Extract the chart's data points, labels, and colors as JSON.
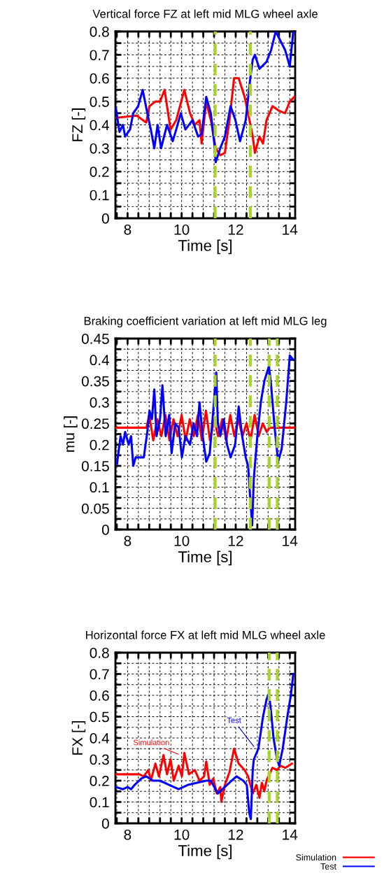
{
  "chart_data": [
    {
      "type": "line",
      "title": "Vertical force FZ at left mid MLG wheel axle",
      "xlabel": "Time [s]",
      "ylabel": "FZ [-]",
      "xlim": [
        7.55,
        14.2
      ],
      "xticks": [
        {
          "value": 7.6,
          "label": null
        },
        8,
        {
          "value": 8.4,
          "label": null
        },
        {
          "value": 8.8,
          "label": null
        },
        {
          "value": 9.2,
          "label": null
        },
        {
          "value": 9.6,
          "label": null
        },
        10,
        {
          "value": 10.4,
          "label": null
        },
        {
          "value": 10.8,
          "label": null
        },
        {
          "value": 11.2,
          "label": null
        },
        {
          "value": 11.6,
          "label": null
        },
        12,
        {
          "value": 12.4,
          "label": null
        },
        {
          "value": 12.8,
          "label": null
        },
        {
          "value": 13.2,
          "label": null
        },
        {
          "value": 13.6,
          "label": null
        },
        14
      ],
      "ylim": [
        0,
        0.8
      ],
      "yticks": [
        0,
        {
          "value": 0.05,
          "label": null
        },
        0.1,
        {
          "value": 0.15,
          "label": null
        },
        0.2,
        {
          "value": 0.25,
          "label": null
        },
        0.3,
        {
          "value": 0.35,
          "label": null
        },
        0.4,
        {
          "value": 0.45,
          "label": null
        },
        0.5,
        {
          "value": 0.55,
          "label": null
        },
        0.6,
        {
          "value": 0.65,
          "label": null
        },
        0.7,
        {
          "value": 0.75,
          "label": null
        },
        0.8
      ],
      "grid": true,
      "series": [
        {
          "color": "#ff0000",
          "x": [
            7.57,
            8.34,
            8.69,
            8.81,
            9.03,
            9.2,
            9.37,
            9.59,
            9.8,
            10.1,
            10.31,
            10.49,
            10.66,
            10.74,
            10.91,
            11.08,
            11.26,
            11.43,
            11.6,
            11.77,
            11.94,
            12.11,
            12.33,
            12.46,
            12.63,
            12.71,
            12.88,
            13.01,
            13.14,
            13.36,
            13.61,
            13.83,
            14.0,
            14.17
          ],
          "values": [
            0.43,
            0.44,
            0.41,
            0.48,
            0.5,
            0.5,
            0.55,
            0.38,
            0.42,
            0.55,
            0.45,
            0.4,
            0.42,
            0.32,
            0.5,
            0.42,
            0.3,
            0.27,
            0.28,
            0.42,
            0.6,
            0.6,
            0.52,
            0.45,
            0.35,
            0.28,
            0.35,
            0.32,
            0.42,
            0.48,
            0.46,
            0.45,
            0.5,
            0.52
          ]
        },
        {
          "color": "#0000ff",
          "x": [
            7.57,
            7.7,
            7.83,
            7.91,
            8.09,
            8.21,
            8.39,
            8.56,
            8.73,
            8.86,
            8.99,
            9.11,
            9.24,
            9.46,
            9.67,
            9.8,
            9.97,
            10.14,
            10.4,
            10.61,
            10.74,
            10.91,
            11.08,
            11.21,
            11.26,
            11.43,
            11.6,
            11.81,
            11.99,
            12.16,
            12.37,
            12.54,
            12.63,
            12.71,
            12.88,
            13.14,
            13.31,
            13.48,
            13.7,
            13.83,
            14.0,
            14.13
          ],
          "values": [
            0.47,
            0.37,
            0.4,
            0.35,
            0.38,
            0.45,
            0.48,
            0.55,
            0.45,
            0.38,
            0.3,
            0.4,
            0.3,
            0.4,
            0.33,
            0.38,
            0.45,
            0.38,
            0.42,
            0.35,
            0.36,
            0.52,
            0.45,
            0.32,
            0.24,
            0.3,
            0.35,
            0.48,
            0.42,
            0.33,
            0.42,
            0.6,
            0.68,
            0.7,
            0.64,
            0.67,
            0.72,
            0.8,
            0.75,
            0.72,
            0.65,
            0.8
          ]
        }
      ],
      "ref_lines": [
        {
          "axis": "x",
          "value": 11.24,
          "color": "#a8d42a",
          "line_style": "dashed"
        },
        {
          "axis": "x",
          "value": 12.54,
          "color": "#a8d42a",
          "line_style": "dashed"
        }
      ]
    },
    {
      "type": "line",
      "title": "Braking coefficient variation at left mid MLG leg",
      "xlabel": "Time [s]",
      "ylabel": "mu [-]",
      "xlim": [
        7.55,
        14.2
      ],
      "xticks": [
        {
          "value": 7.6,
          "label": null
        },
        8,
        {
          "value": 8.4,
          "label": null
        },
        {
          "value": 8.8,
          "label": null
        },
        {
          "value": 9.2,
          "label": null
        },
        {
          "value": 9.6,
          "label": null
        },
        10,
        {
          "value": 10.4,
          "label": null
        },
        {
          "value": 10.8,
          "label": null
        },
        {
          "value": 11.2,
          "label": null
        },
        {
          "value": 11.6,
          "label": null
        },
        12,
        {
          "value": 12.4,
          "label": null
        },
        {
          "value": 12.8,
          "label": null
        },
        {
          "value": 13.2,
          "label": null
        },
        {
          "value": 13.6,
          "label": null
        },
        14
      ],
      "ylim": [
        0,
        0.45
      ],
      "yticks": [
        0,
        {
          "value": 0.025,
          "label": null
        },
        0.05,
        {
          "value": 0.075,
          "label": null
        },
        0.1,
        {
          "value": 0.125,
          "label": null
        },
        0.15,
        {
          "value": 0.175,
          "label": null
        },
        0.2,
        {
          "value": 0.225,
          "label": null
        },
        0.25,
        {
          "value": 0.275,
          "label": null
        },
        0.3,
        {
          "value": 0.325,
          "label": null
        },
        0.35,
        {
          "value": 0.375,
          "label": null
        },
        0.4,
        {
          "value": 0.425,
          "label": null
        },
        0.45
      ],
      "grid": true,
      "series": [
        {
          "color": "#ff0000",
          "x": [
            7.57,
            8.7,
            8.8,
            8.95,
            9.1,
            9.25,
            9.4,
            9.55,
            9.7,
            9.85,
            10.0,
            10.15,
            10.3,
            10.45,
            10.6,
            10.75,
            10.9,
            11.05,
            11.2,
            11.35,
            11.5,
            11.65,
            11.8,
            11.95,
            12.1,
            12.25,
            12.4,
            12.55,
            12.7,
            12.85,
            13.0,
            13.15,
            13.25,
            14.17
          ],
          "values": [
            0.24,
            0.24,
            0.27,
            0.21,
            0.26,
            0.22,
            0.27,
            0.21,
            0.26,
            0.22,
            0.27,
            0.21,
            0.26,
            0.22,
            0.27,
            0.21,
            0.28,
            0.21,
            0.26,
            0.22,
            0.26,
            0.21,
            0.27,
            0.22,
            0.26,
            0.22,
            0.25,
            0.21,
            0.27,
            0.22,
            0.25,
            0.23,
            0.24,
            0.24
          ]
        },
        {
          "color": "#0000ff",
          "x": [
            7.61,
            7.74,
            7.83,
            7.91,
            8.04,
            8.13,
            8.21,
            8.3,
            8.43,
            8.6,
            8.73,
            8.81,
            8.9,
            8.99,
            9.07,
            9.2,
            9.29,
            9.41,
            9.54,
            9.63,
            9.76,
            9.89,
            10.01,
            10.14,
            10.31,
            10.44,
            10.57,
            10.66,
            10.78,
            10.91,
            11.04,
            11.17,
            11.28,
            11.34,
            11.43,
            11.56,
            11.68,
            11.81,
            11.98,
            12.11,
            12.24,
            12.37,
            12.46,
            12.54,
            12.61,
            12.67,
            12.8,
            12.93,
            13.06,
            13.23,
            13.31,
            13.44,
            13.57,
            13.7,
            13.87,
            14.0,
            14.13
          ],
          "values": [
            0.155,
            0.22,
            0.2,
            0.23,
            0.2,
            0.22,
            0.15,
            0.17,
            0.17,
            0.17,
            0.23,
            0.28,
            0.26,
            0.33,
            0.22,
            0.26,
            0.34,
            0.22,
            0.27,
            0.18,
            0.25,
            0.24,
            0.17,
            0.22,
            0.2,
            0.25,
            0.22,
            0.3,
            0.22,
            0.16,
            0.18,
            0.28,
            0.37,
            0.25,
            0.22,
            0.26,
            0.2,
            0.17,
            0.2,
            0.29,
            0.22,
            0.17,
            0.15,
            0.07,
            0.01,
            0.12,
            0.22,
            0.3,
            0.35,
            0.385,
            0.34,
            0.24,
            0.16,
            0.19,
            0.3,
            0.41,
            0.4
          ]
        }
      ],
      "ref_lines": [
        {
          "axis": "x",
          "value": 11.24,
          "color": "#a8d42a",
          "line_style": "dashed"
        },
        {
          "axis": "x",
          "value": 12.54,
          "color": "#a8d42a",
          "line_style": "dashed"
        },
        {
          "axis": "x",
          "value": 13.24,
          "color": "#a8d42a",
          "line_style": "dashed"
        },
        {
          "axis": "x",
          "value": 13.54,
          "color": "#a8d42a",
          "line_style": "dashed"
        }
      ]
    },
    {
      "type": "line",
      "title": "Horizontal force FX at left mid MLG wheel axle",
      "xlabel": "Time [s]",
      "ylabel": "FX [-]",
      "xlim": [
        7.55,
        14.2
      ],
      "xticks": [
        {
          "value": 7.6,
          "label": null
        },
        8,
        {
          "value": 8.4,
          "label": null
        },
        {
          "value": 8.8,
          "label": null
        },
        {
          "value": 9.2,
          "label": null
        },
        {
          "value": 9.6,
          "label": null
        },
        10,
        {
          "value": 10.4,
          "label": null
        },
        {
          "value": 10.8,
          "label": null
        },
        {
          "value": 11.2,
          "label": null
        },
        {
          "value": 11.6,
          "label": null
        },
        12,
        {
          "value": 12.4,
          "label": null
        },
        {
          "value": 12.8,
          "label": null
        },
        {
          "value": 13.2,
          "label": null
        },
        {
          "value": 13.6,
          "label": null
        },
        14
      ],
      "ylim": [
        0,
        0.8
      ],
      "yticks": [
        0,
        {
          "value": 0.05,
          "label": null
        },
        0.1,
        {
          "value": 0.15,
          "label": null
        },
        0.2,
        {
          "value": 0.25,
          "label": null
        },
        0.3,
        {
          "value": 0.35,
          "label": null
        },
        0.4,
        {
          "value": 0.45,
          "label": null
        },
        0.5,
        {
          "value": 0.55,
          "label": null
        },
        0.6,
        {
          "value": 0.65,
          "label": null
        },
        0.7,
        {
          "value": 0.75,
          "label": null
        },
        0.8
      ],
      "grid": true,
      "legend": "bottom right",
      "series": [
        {
          "name": "Simulation",
          "color": "#ff0000",
          "x": [
            7.57,
            8.43,
            8.6,
            8.77,
            8.86,
            9.03,
            9.16,
            9.33,
            9.46,
            9.59,
            9.71,
            9.89,
            10.01,
            10.1,
            10.27,
            10.49,
            10.66,
            10.83,
            10.91,
            11.04,
            11.17,
            11.3,
            11.43,
            11.47,
            11.6,
            11.77,
            11.94,
            12.11,
            12.33,
            12.46,
            12.63,
            12.76,
            12.88,
            12.97,
            13.06,
            13.14,
            13.36,
            13.53,
            13.66,
            13.83,
            14.08
          ],
          "values": [
            0.23,
            0.23,
            0.22,
            0.25,
            0.2,
            0.28,
            0.22,
            0.32,
            0.23,
            0.3,
            0.2,
            0.27,
            0.22,
            0.33,
            0.23,
            0.25,
            0.2,
            0.22,
            0.29,
            0.18,
            0.21,
            0.14,
            0.17,
            0.1,
            0.18,
            0.24,
            0.35,
            0.28,
            0.25,
            0.22,
            0.14,
            0.18,
            0.12,
            0.19,
            0.15,
            0.2,
            0.26,
            0.25,
            0.27,
            0.26,
            0.28
          ]
        },
        {
          "name": "Test",
          "color": "#0000ff",
          "x": [
            7.57,
            7.83,
            8.0,
            8.13,
            8.26,
            8.51,
            8.69,
            8.94,
            9.2,
            9.54,
            9.89,
            10.23,
            10.57,
            10.91,
            11.08,
            11.21,
            11.34,
            11.51,
            11.68,
            11.85,
            12.03,
            12.28,
            12.41,
            12.5,
            12.56,
            12.63,
            12.67,
            12.84,
            13.01,
            13.14,
            13.23,
            13.31,
            13.4,
            13.53,
            13.61,
            13.74,
            13.91,
            14.04,
            14.13
          ],
          "values": [
            0.17,
            0.16,
            0.17,
            0.16,
            0.18,
            0.21,
            0.22,
            0.2,
            0.2,
            0.18,
            0.16,
            0.18,
            0.19,
            0.2,
            0.2,
            0.17,
            0.14,
            0.16,
            0.18,
            0.2,
            0.22,
            0.2,
            0.18,
            0.05,
            0.02,
            0.25,
            0.3,
            0.35,
            0.5,
            0.58,
            0.61,
            0.52,
            0.4,
            0.3,
            0.27,
            0.35,
            0.5,
            0.6,
            0.7
          ]
        }
      ],
      "annotations": [
        "Simulation",
        "Test"
      ],
      "ref_lines": [
        {
          "axis": "x",
          "value": 13.24,
          "color": "#a8d42a",
          "line_style": "dashed"
        },
        {
          "axis": "x",
          "value": 13.54,
          "color": "#a8d42a",
          "line_style": "dashed"
        }
      ]
    }
  ]
}
